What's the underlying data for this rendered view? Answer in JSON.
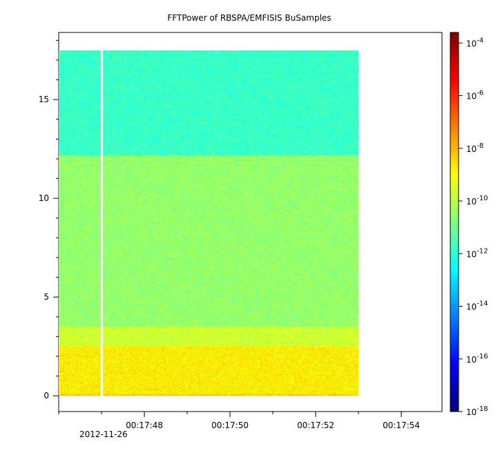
{
  "chart_data": {
    "type": "heatmap",
    "title": "FFTPower of RBSPA/EMFISIS  BuSamples",
    "xlabel": "",
    "ylabel": "",
    "x_ticks": [
      {
        "value": 48,
        "label": "00:17:48"
      },
      {
        "value": 50,
        "label": "00:17:50"
      },
      {
        "value": 52,
        "label": "00:17:52"
      },
      {
        "value": 54,
        "label": "00:17:54"
      }
    ],
    "x_date_label": "2012-11-26",
    "xlim_seconds": [
      46.0,
      54.95
    ],
    "data_time_range_seconds": [
      46.0,
      53.0
    ],
    "gap_time_seconds": 47.0,
    "y_ticks": [
      {
        "value": 0,
        "label": "0"
      },
      {
        "value": 5,
        "label": "5"
      },
      {
        "value": 10,
        "label": "10"
      },
      {
        "value": 15,
        "label": "15"
      }
    ],
    "ylim": [
      -0.8,
      18.4
    ],
    "data_freq_range": [
      0,
      17.5
    ],
    "colorbar": {
      "scale": "log",
      "range_exponent": [
        -18,
        -3.6
      ],
      "tick_exponents": [
        -4,
        -6,
        -8,
        -10,
        -12,
        -14,
        -16,
        -18
      ],
      "base": "10"
    },
    "bands": [
      {
        "freq_range": [
          0,
          0.1
        ],
        "level_exponent": -8.2
      },
      {
        "freq_range": [
          0.1,
          2.5
        ],
        "level_exponent": -8.8
      },
      {
        "freq_range": [
          2.5,
          3.5
        ],
        "level_exponent": -9.7
      },
      {
        "freq_range": [
          3.5,
          12.2
        ],
        "level_exponent": -10.5
      },
      {
        "freq_range": [
          12.2,
          17.5
        ],
        "level_exponent": -11.8
      }
    ]
  }
}
